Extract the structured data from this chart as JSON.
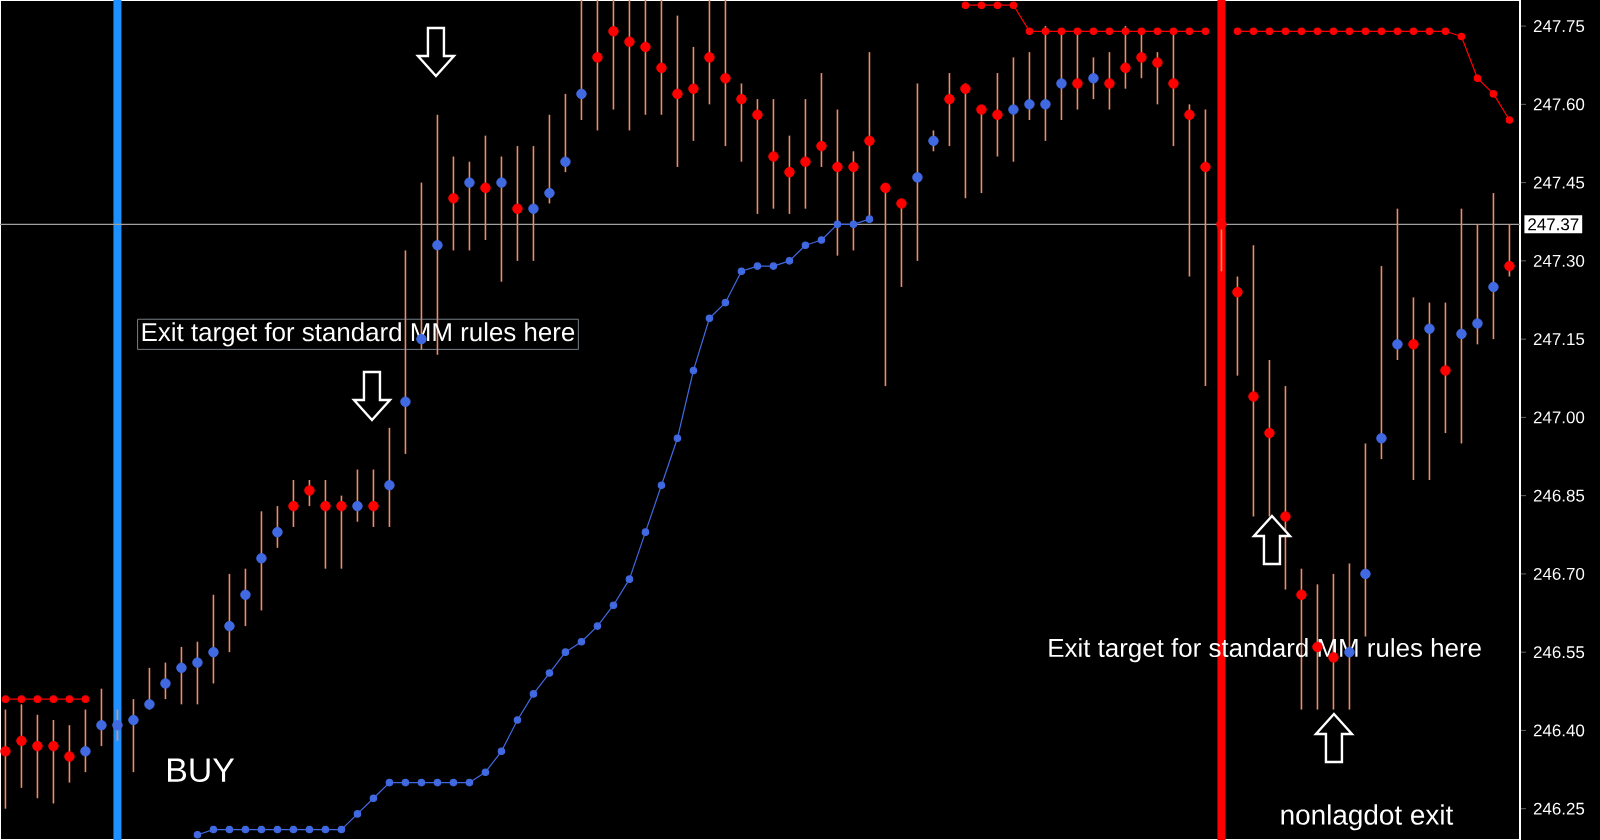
{
  "chart_data": {
    "type": "scatter",
    "categories": [
      null,
      null,
      null,
      null,
      null,
      null,
      null,
      null,
      null,
      null,
      null,
      null,
      null,
      null,
      null,
      null,
      null,
      null,
      null,
      null,
      null,
      null,
      null,
      null,
      null,
      null,
      null,
      null,
      null,
      null,
      null,
      null,
      null,
      null,
      null,
      null,
      null,
      null,
      null,
      null,
      null,
      null,
      null,
      null,
      null,
      null,
      null,
      null,
      null,
      null,
      null,
      null,
      null,
      null,
      null,
      null,
      null,
      null,
      null,
      null,
      null,
      null,
      null,
      null,
      null,
      null,
      null,
      null,
      null,
      null,
      null,
      null,
      null,
      null,
      null,
      null,
      null,
      null,
      null,
      null,
      null,
      null,
      null,
      null,
      null,
      null,
      null,
      null,
      null,
      null,
      null,
      null,
      null,
      null,
      null
    ],
    "series": [
      {
        "marker": "circle",
        "values": [
          246.36,
          246.38,
          246.37,
          246.37,
          246.35,
          246.36,
          246.41,
          246.41,
          246.42,
          246.45,
          246.49,
          246.52,
          246.53,
          246.55,
          246.6,
          246.66,
          246.73,
          246.78,
          246.83,
          246.86,
          246.83,
          246.83,
          246.83,
          246.83,
          246.87,
          247.03,
          247.15,
          247.33,
          247.42,
          247.45,
          247.44,
          247.45,
          247.4,
          247.4,
          247.43,
          247.49,
          247.62,
          247.69,
          247.74,
          247.72,
          247.71,
          247.67,
          247.62,
          247.63,
          247.69,
          247.65,
          247.61,
          247.58,
          247.5,
          247.47,
          247.49,
          247.52,
          247.48,
          247.48,
          247.53,
          247.44,
          247.41,
          247.46,
          247.53,
          247.61,
          247.63,
          247.59,
          247.58,
          247.59,
          247.6,
          247.6,
          247.64,
          247.64,
          247.65,
          247.64,
          247.67,
          247.69,
          247.68,
          247.64,
          247.58,
          247.48,
          247.37,
          247.24,
          247.04,
          246.97,
          246.81,
          246.66,
          246.56,
          246.54,
          246.55,
          246.7,
          246.96,
          247.14,
          247.14,
          247.17,
          247.09,
          247.16,
          247.18,
          247.25,
          247.29
        ],
        "colors": [
          "#ff0000",
          "#ff0000",
          "#ff0000",
          "#ff0000",
          "#ff0000",
          "#4169e1",
          "#4169e1",
          "#4169e1",
          "#4169e1",
          "#4169e1",
          "#4169e1",
          "#4169e1",
          "#4169e1",
          "#4169e1",
          "#4169e1",
          "#4169e1",
          "#4169e1",
          "#4169e1",
          "#ff0000",
          "#ff0000",
          "#ff0000",
          "#ff0000",
          "#4169e1",
          "#ff0000",
          "#4169e1",
          "#4169e1",
          "#4169e1",
          "#4169e1",
          "#ff0000",
          "#4169e1",
          "#ff0000",
          "#4169e1",
          "#ff0000",
          "#4169e1",
          "#4169e1",
          "#4169e1",
          "#4169e1",
          "#ff0000",
          "#ff0000",
          "#ff0000",
          "#ff0000",
          "#ff0000",
          "#ff0000",
          "#ff0000",
          "#ff0000",
          "#ff0000",
          "#ff0000",
          "#ff0000",
          "#ff0000",
          "#ff0000",
          "#ff0000",
          "#ff0000",
          "#ff0000",
          "#ff0000",
          "#ff0000",
          "#ff0000",
          "#ff0000",
          "#4169e1",
          "#4169e1",
          "#ff0000",
          "#ff0000",
          "#ff0000",
          "#ff0000",
          "#4169e1",
          "#4169e1",
          "#4169e1",
          "#4169e1",
          "#ff0000",
          "#4169e1",
          "#ff0000",
          "#ff0000",
          "#ff0000",
          "#ff0000",
          "#ff0000",
          "#ff0000",
          "#ff0000",
          "#ff0000",
          "#ff0000",
          "#ff0000",
          "#ff0000",
          "#ff0000",
          "#ff0000",
          "#ff0000",
          "#ff0000",
          "#4169e1",
          "#4169e1",
          "#4169e1",
          "#4169e1",
          "#ff0000",
          "#4169e1",
          "#ff0000",
          "#4169e1",
          "#4169e1",
          "#4169e1",
          "#ff0000"
        ],
        "errors": [
          [
            246.25,
            246.44
          ],
          [
            246.29,
            246.45
          ],
          [
            246.27,
            246.43
          ],
          [
            246.26,
            246.42
          ],
          [
            246.3,
            246.41
          ],
          [
            246.32,
            246.44
          ],
          [
            246.37,
            246.48
          ],
          [
            246.38,
            246.44
          ],
          [
            246.32,
            246.46
          ],
          [
            246.44,
            246.52
          ],
          [
            246.46,
            246.53
          ],
          [
            246.45,
            246.56
          ],
          [
            246.45,
            246.57
          ],
          [
            246.49,
            246.66
          ],
          [
            246.55,
            246.7
          ],
          [
            246.6,
            246.71
          ],
          [
            246.63,
            246.82
          ],
          [
            246.75,
            246.83
          ],
          [
            246.79,
            246.88
          ],
          [
            246.83,
            246.88
          ],
          [
            246.71,
            246.88
          ],
          [
            246.71,
            246.85
          ],
          [
            246.8,
            246.9
          ],
          [
            246.79,
            246.9
          ],
          [
            246.79,
            246.98
          ],
          [
            246.93,
            247.32
          ],
          [
            247.13,
            247.45
          ],
          [
            247.12,
            247.58
          ],
          [
            247.32,
            247.5
          ],
          [
            247.32,
            247.49
          ],
          [
            247.34,
            247.54
          ],
          [
            247.26,
            247.5
          ],
          [
            247.3,
            247.52
          ],
          [
            247.3,
            247.52
          ],
          [
            247.41,
            247.58
          ],
          [
            247.47,
            247.62
          ],
          [
            247.57,
            247.8
          ],
          [
            247.55,
            247.8
          ],
          [
            247.59,
            247.8
          ],
          [
            247.55,
            247.8
          ],
          [
            247.58,
            247.8
          ],
          [
            247.58,
            247.8
          ],
          [
            247.48,
            247.77
          ],
          [
            247.53,
            247.71
          ],
          [
            247.6,
            247.8
          ],
          [
            247.52,
            247.8
          ],
          [
            247.49,
            247.64
          ],
          [
            247.39,
            247.61
          ],
          [
            247.4,
            247.61
          ],
          [
            247.39,
            247.54
          ],
          [
            247.4,
            247.61
          ],
          [
            247.48,
            247.66
          ],
          [
            247.31,
            247.59
          ],
          [
            247.32,
            247.51
          ],
          [
            247.38,
            247.7
          ],
          [
            247.06,
            247.44
          ],
          [
            247.25,
            247.41
          ],
          [
            247.3,
            247.64
          ],
          [
            247.51,
            247.55
          ],
          [
            247.52,
            247.66
          ],
          [
            247.42,
            247.64
          ],
          [
            247.43,
            247.59
          ],
          [
            247.5,
            247.66
          ],
          [
            247.49,
            247.69
          ],
          [
            247.57,
            247.7
          ],
          [
            247.53,
            247.75
          ],
          [
            247.57,
            247.74
          ],
          [
            247.59,
            247.74
          ],
          [
            247.61,
            247.69
          ],
          [
            247.59,
            247.7
          ],
          [
            247.63,
            247.75
          ],
          [
            247.65,
            247.74
          ],
          [
            247.6,
            247.7
          ],
          [
            247.52,
            247.74
          ],
          [
            247.27,
            247.6
          ],
          [
            247.06,
            247.59
          ],
          [
            247.28,
            247.38
          ],
          [
            247.08,
            247.27
          ],
          [
            246.81,
            247.33
          ],
          [
            246.81,
            247.11
          ],
          [
            246.67,
            247.06
          ],
          [
            246.44,
            246.71
          ],
          [
            246.44,
            246.68
          ],
          [
            246.44,
            246.7
          ],
          [
            246.44,
            246.72
          ],
          [
            246.58,
            246.95
          ],
          [
            246.92,
            247.29
          ],
          [
            247.11,
            247.4
          ],
          [
            246.88,
            247.23
          ],
          [
            246.88,
            247.22
          ],
          [
            246.97,
            247.22
          ],
          [
            246.95,
            247.4
          ],
          [
            247.14,
            247.37
          ],
          [
            247.15,
            247.43
          ],
          [
            247.27,
            247.37
          ]
        ]
      },
      {
        "type": "line",
        "marker": "circle",
        "line_style": "solid",
        "color": "#4169e1",
        "values": [
          null,
          null,
          null,
          null,
          null,
          null,
          null,
          null,
          null,
          null,
          null,
          null,
          246.2,
          246.21,
          246.21,
          246.21,
          246.21,
          246.21,
          246.21,
          246.21,
          246.21,
          246.21,
          246.24,
          246.27,
          246.3,
          246.3,
          246.3,
          246.3,
          246.3,
          246.3,
          246.32,
          246.36,
          246.42,
          246.47,
          246.51,
          246.55,
          246.57,
          246.6,
          246.64,
          246.69,
          246.78,
          246.87,
          246.96,
          247.09,
          247.19,
          247.22,
          247.28,
          247.29,
          247.29,
          247.3,
          247.33,
          247.34,
          247.37,
          247.37,
          247.38,
          null,
          null,
          null,
          null,
          null,
          null,
          null,
          null,
          null,
          null,
          null,
          null,
          null,
          null,
          null,
          null,
          null,
          null,
          null,
          null,
          null,
          null,
          null,
          null,
          null,
          null,
          null,
          null,
          null,
          null,
          null,
          null,
          null,
          null,
          null,
          null,
          null,
          null,
          null,
          null
        ]
      },
      {
        "type": "line",
        "marker": "circle",
        "line_style": "solid",
        "color": "#ff0000",
        "values": [
          246.46,
          246.46,
          246.46,
          246.46,
          246.46,
          246.46,
          null,
          null,
          null,
          null,
          null,
          null,
          null,
          null,
          null,
          null,
          null,
          null,
          null,
          null,
          null,
          null,
          null,
          null,
          null,
          null,
          null,
          null,
          null,
          null,
          null,
          null,
          null,
          null,
          null,
          null,
          null,
          null,
          null,
          null,
          null,
          null,
          null,
          null,
          null,
          null,
          null,
          null,
          null,
          null,
          null,
          null,
          null,
          null,
          null,
          null,
          null,
          null,
          null,
          null,
          247.79,
          247.79,
          247.79,
          247.79,
          247.74,
          247.74,
          247.74,
          247.74,
          247.74,
          247.74,
          247.74,
          247.74,
          247.74,
          247.74,
          247.74,
          247.74,
          null,
          247.74,
          247.74,
          247.74,
          247.74,
          247.74,
          247.74,
          247.74,
          247.74,
          247.74,
          247.74,
          247.74,
          247.74,
          247.74,
          247.74,
          247.73,
          247.65,
          247.62,
          247.57
        ]
      }
    ],
    "ylim": [
      246.19,
      247.8
    ],
    "yticks": [
      {
        "value": 246.25,
        "label": "246.25"
      },
      {
        "value": 246.4,
        "label": "246.40"
      },
      {
        "value": 246.55,
        "label": "246.55"
      },
      {
        "value": 246.7,
        "label": "246.70"
      },
      {
        "value": 246.85,
        "label": "246.85"
      },
      {
        "value": 247.0,
        "label": "247.00"
      },
      {
        "value": 247.15,
        "label": "247.15"
      },
      {
        "value": 247.3,
        "label": "247.30"
      },
      {
        "value": 247.45,
        "label": "247.45"
      },
      {
        "value": 247.6,
        "label": "247.60"
      },
      {
        "value": 247.75,
        "label": "247.75"
      }
    ],
    "tick_labels": "y",
    "grid": false,
    "ref_lines": [
      {
        "axis": "y",
        "value": 247.37,
        "label": "247.37",
        "color": "#a0a0a0"
      }
    ],
    "annotations": [
      "Exit target for standard MM rules here",
      "Exit target for standard MM rules here",
      "BUY",
      "nonlagdot exit"
    ]
  }
}
